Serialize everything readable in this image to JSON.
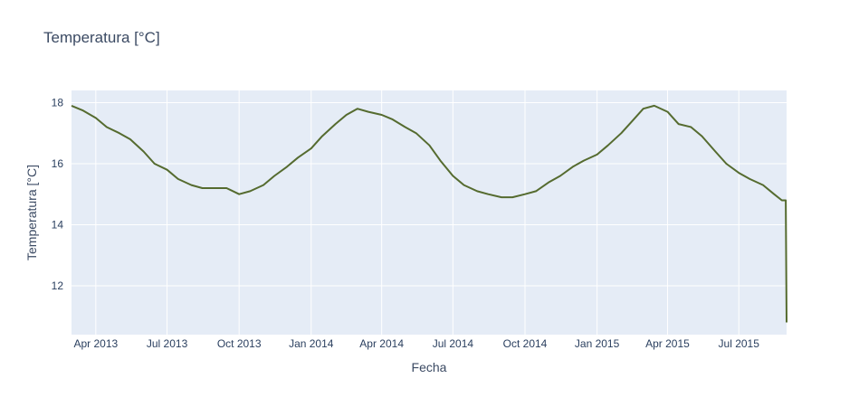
{
  "chart_data": {
    "type": "line",
    "title": "Temperatura [°C]",
    "xlabel": "Fecha",
    "ylabel": "Temperatura [°C]",
    "xlim": [
      "2013-03-01",
      "2015-08-31"
    ],
    "ylim": [
      10.4,
      18.4
    ],
    "x_tick_labels": [
      "Apr 2013",
      "Jul 2013",
      "Oct 2013",
      "Jan 2014",
      "Apr 2014",
      "Jul 2014",
      "Oct 2014",
      "Jan 2015",
      "Apr 2015",
      "Jul 2015"
    ],
    "x_tick_dates": [
      "2013-04-01",
      "2013-07-01",
      "2013-10-01",
      "2014-01-01",
      "2014-04-01",
      "2014-07-01",
      "2014-10-01",
      "2015-01-01",
      "2015-04-01",
      "2015-07-01"
    ],
    "y_ticks": [
      12,
      14,
      16,
      18
    ],
    "grid": true,
    "legend": "none",
    "line_color": "#556b2f",
    "plot_background": "#e5ecf6",
    "series": [
      {
        "x": [
          "2013-03-01",
          "2013-03-15",
          "2013-04-01",
          "2013-04-15",
          "2013-05-01",
          "2013-05-15",
          "2013-06-01",
          "2013-06-15",
          "2013-07-01",
          "2013-07-15",
          "2013-08-01",
          "2013-08-15",
          "2013-09-01",
          "2013-09-15",
          "2013-10-01",
          "2013-10-15",
          "2013-11-01",
          "2013-11-15",
          "2013-12-01",
          "2013-12-15",
          "2014-01-01",
          "2014-01-15",
          "2014-02-01",
          "2014-02-15",
          "2014-03-01",
          "2014-03-15",
          "2014-04-01",
          "2014-04-15",
          "2014-05-01",
          "2014-05-15",
          "2014-06-01",
          "2014-06-15",
          "2014-07-01",
          "2014-07-15",
          "2014-08-01",
          "2014-08-15",
          "2014-09-01",
          "2014-09-15",
          "2014-10-01",
          "2014-10-15",
          "2014-11-01",
          "2014-11-15",
          "2014-12-01",
          "2014-12-15",
          "2015-01-01",
          "2015-01-15",
          "2015-02-01",
          "2015-02-15",
          "2015-03-01",
          "2015-03-15",
          "2015-04-01",
          "2015-04-15",
          "2015-05-01",
          "2015-05-15",
          "2015-06-01",
          "2015-06-15",
          "2015-07-01",
          "2015-07-15",
          "2015-08-01",
          "2015-08-15",
          "2015-08-25",
          "2015-08-30",
          "2015-08-31"
        ],
        "y": [
          17.9,
          17.75,
          17.5,
          17.2,
          17.0,
          16.8,
          16.4,
          16.0,
          15.8,
          15.5,
          15.3,
          15.2,
          15.2,
          15.2,
          15.0,
          15.1,
          15.3,
          15.6,
          15.9,
          16.2,
          16.5,
          16.9,
          17.3,
          17.6,
          17.8,
          17.7,
          17.6,
          17.45,
          17.2,
          17.0,
          16.6,
          16.1,
          15.6,
          15.3,
          15.1,
          15.0,
          14.9,
          14.9,
          15.0,
          15.1,
          15.4,
          15.6,
          15.9,
          16.1,
          16.3,
          16.6,
          17.0,
          17.4,
          17.8,
          17.9,
          17.7,
          17.3,
          17.2,
          16.9,
          16.4,
          16.0,
          15.7,
          15.5,
          15.3,
          15.0,
          14.8,
          14.8,
          10.8
        ]
      }
    ]
  }
}
